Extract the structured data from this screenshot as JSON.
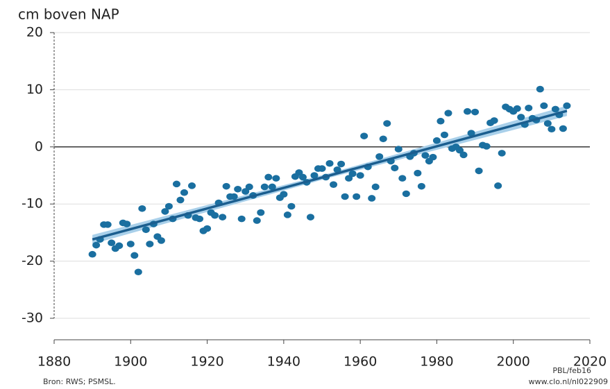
{
  "chart_data": {
    "type": "scatter",
    "ylabel": "cm boven NAP",
    "source": "Bron: RWS; PSMSL.",
    "credit": "PBL/feb16",
    "url": "www.clo.nl/nl022909",
    "xlim": [
      1880,
      2020
    ],
    "xticks": [
      1880,
      1900,
      1920,
      1940,
      1960,
      1980,
      2000,
      2020
    ],
    "ylim": [
      -30,
      20
    ],
    "yticks": [
      -30,
      -20,
      -10,
      0,
      10,
      20
    ],
    "grid": true,
    "color": "#1a6fa0",
    "x": [
      1890,
      1891,
      1892,
      1893,
      1894,
      1895,
      1896,
      1897,
      1898,
      1899,
      1900,
      1901,
      1902,
      1903,
      1904,
      1905,
      1906,
      1907,
      1908,
      1909,
      1910,
      1911,
      1912,
      1913,
      1914,
      1915,
      1916,
      1917,
      1918,
      1919,
      1920,
      1921,
      1922,
      1923,
      1924,
      1925,
      1926,
      1927,
      1928,
      1929,
      1930,
      1931,
      1932,
      1933,
      1934,
      1935,
      1936,
      1937,
      1938,
      1939,
      1940,
      1941,
      1942,
      1943,
      1944,
      1945,
      1946,
      1947,
      1948,
      1949,
      1950,
      1951,
      1952,
      1953,
      1954,
      1955,
      1956,
      1957,
      1958,
      1959,
      1960,
      1961,
      1962,
      1963,
      1964,
      1965,
      1966,
      1967,
      1968,
      1969,
      1970,
      1971,
      1972,
      1973,
      1974,
      1975,
      1976,
      1977,
      1978,
      1979,
      1980,
      1981,
      1982,
      1983,
      1984,
      1985,
      1986,
      1987,
      1988,
      1989,
      1990,
      1991,
      1992,
      1993,
      1994,
      1995,
      1996,
      1997,
      1998,
      1999,
      2000,
      2001,
      2002,
      2003,
      2004,
      2005,
      2006,
      2007,
      2008,
      2009,
      2010,
      2011,
      2012,
      2013,
      2014
    ],
    "values": [
      -18.8,
      -17.2,
      -16.2,
      -13.6,
      -13.6,
      -16.8,
      -17.8,
      -17.3,
      -13.3,
      -13.5,
      -17,
      -19,
      -21.9,
      -10.8,
      -14.5,
      -17,
      -13.5,
      -15.7,
      -16.4,
      -11.3,
      -10.4,
      -12.6,
      -6.5,
      -9.3,
      -8,
      -12,
      -6.8,
      -12.4,
      -12.6,
      -14.7,
      -14.3,
      -11.5,
      -12,
      -9.8,
      -12.3,
      -6.9,
      -8.7,
      -8.7,
      -7.4,
      -12.6,
      -7.8,
      -7,
      -8.5,
      -12.9,
      -11.5,
      -7,
      -5.3,
      -7,
      -5.5,
      -8.9,
      -8.3,
      -11.9,
      -10.4,
      -5.2,
      -4.5,
      -5.3,
      -6.2,
      -12.3,
      -5,
      -3.8,
      -3.8,
      -5.3,
      -2.9,
      -6.6,
      -4,
      -3,
      -8.7,
      -5.5,
      -4.7,
      -8.7,
      -5,
      1.9,
      -3.5,
      -9,
      -7,
      -1.7,
      1.4,
      4.1,
      -2.5,
      -3.7,
      -0.4,
      -5.5,
      -8.2,
      -1.7,
      -1.1,
      -4.6,
      -6.9,
      -1.5,
      -2.5,
      -1.8,
      1.1,
      4.5,
      2.1,
      5.9,
      -0.3,
      0,
      -0.6,
      -1.4,
      6.2,
      2.4,
      6.1,
      -4.2,
      0.3,
      0.1,
      4.2,
      4.6,
      -6.8,
      -1.1,
      7,
      6.6,
      6.2,
      6.7,
      5.2,
      3.9,
      6.8,
      5,
      4.7,
      10.1,
      7.2,
      4.1,
      3.1,
      6.6,
      5.6,
      3.2,
      7.2
    ],
    "trend": {
      "color": "#1b5e8f",
      "band_color": "#a9d0ea",
      "x": [
        1890,
        1952,
        2014
      ],
      "values": [
        -16.2,
        -5.0,
        6.3
      ],
      "lower": [
        -17.0,
        -5.4,
        5.4
      ],
      "upper": [
        -15.4,
        -4.6,
        7.2
      ]
    }
  }
}
